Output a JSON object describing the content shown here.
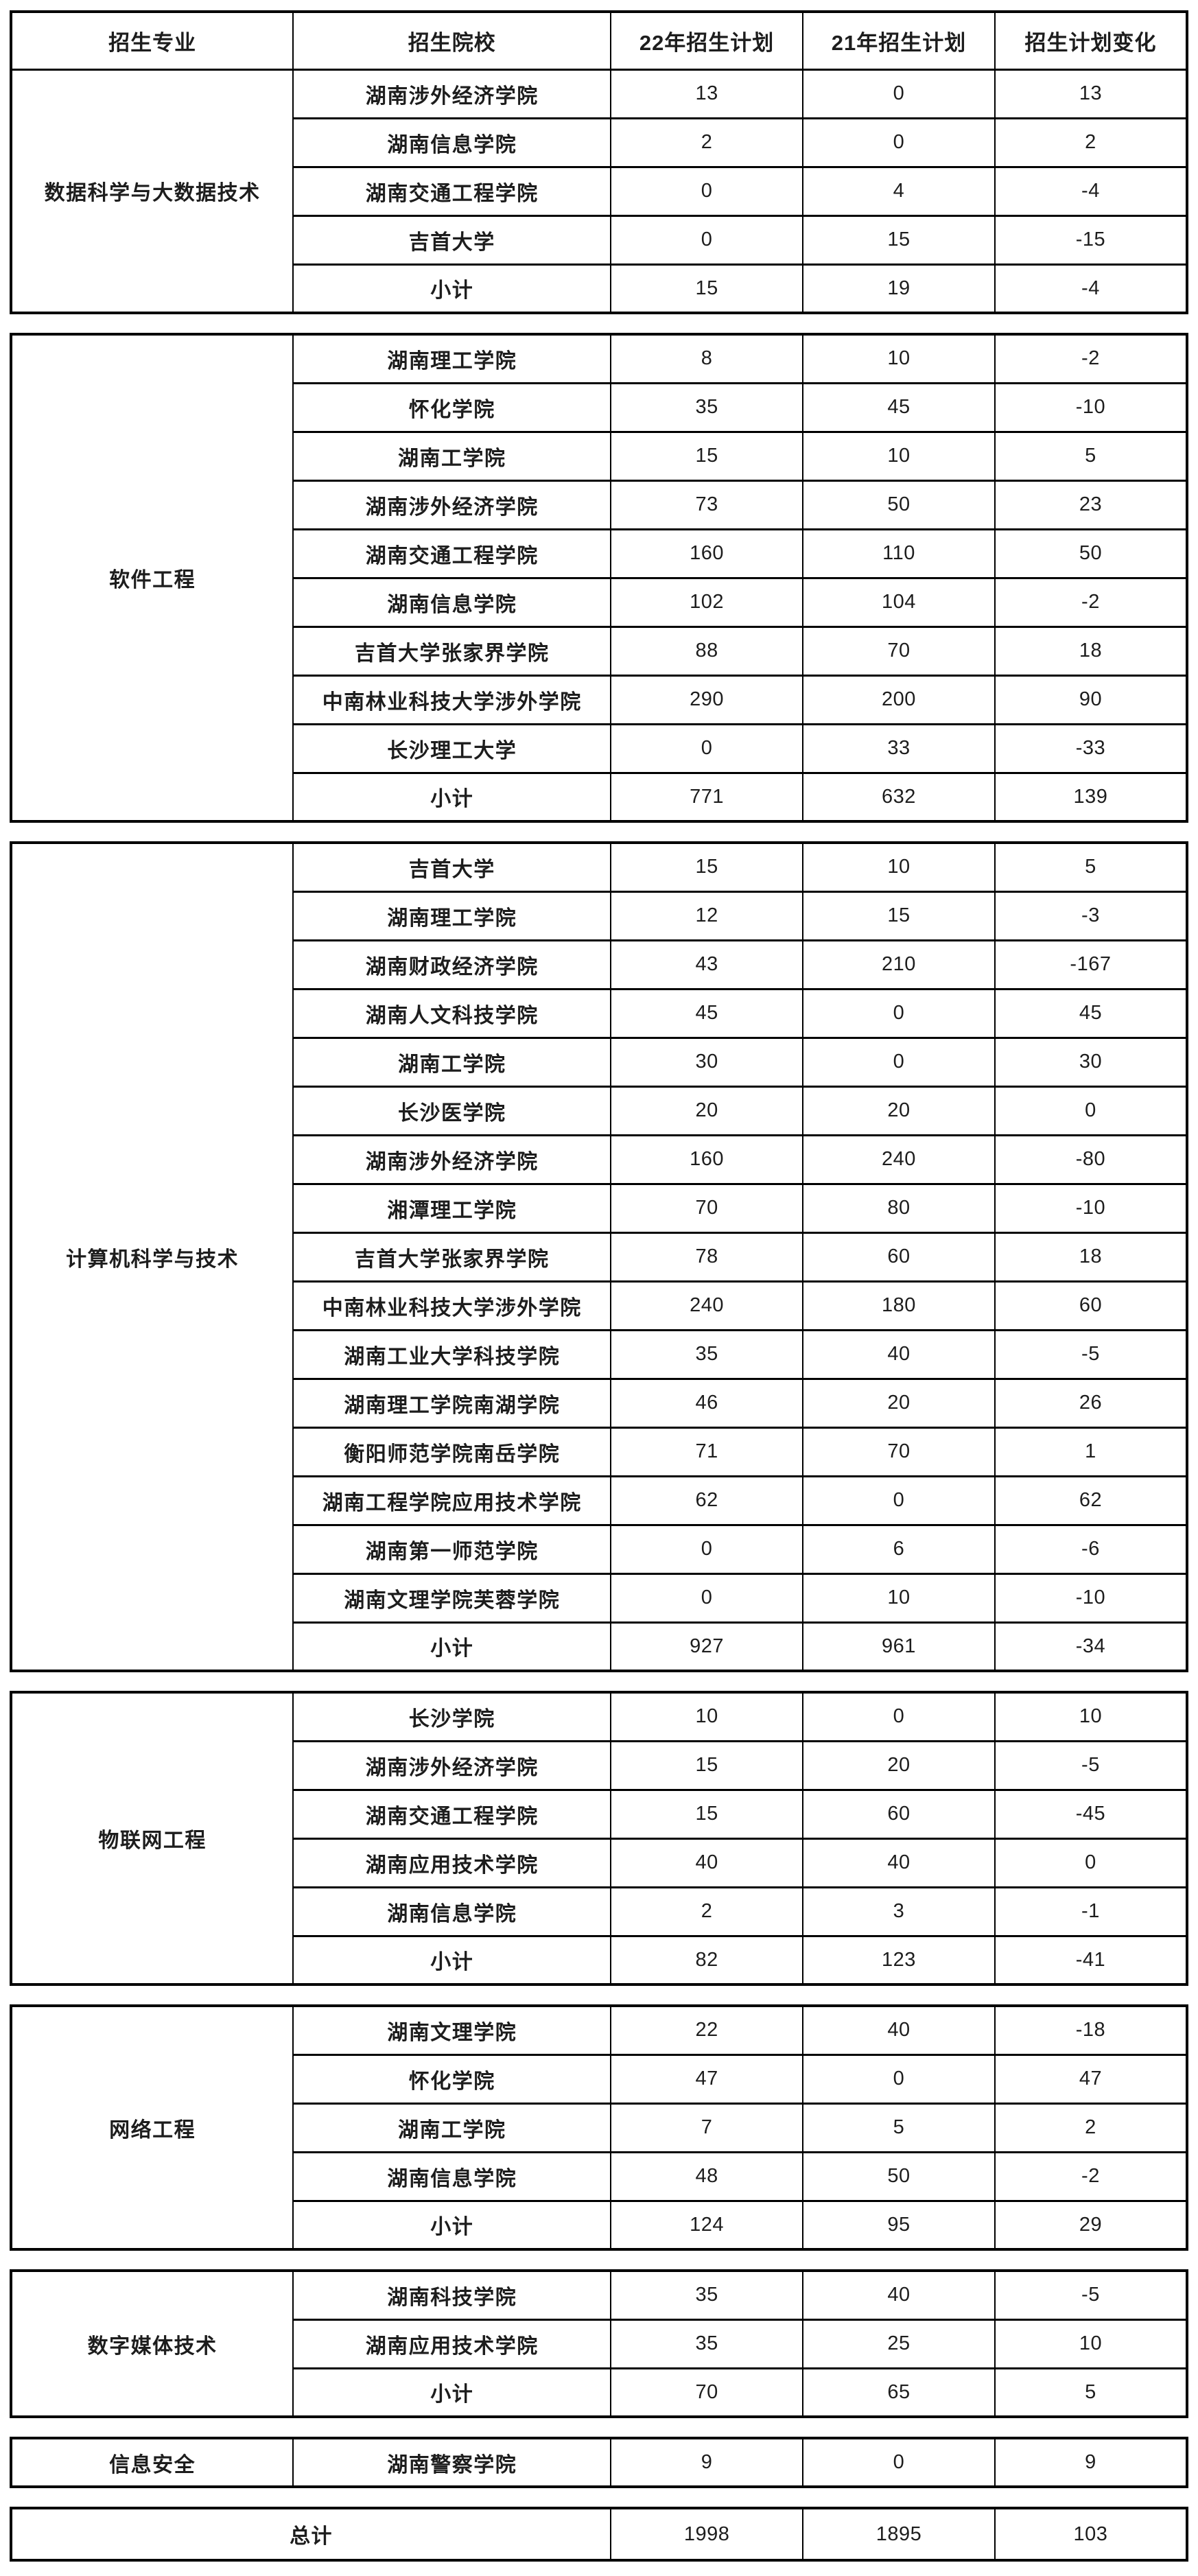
{
  "page": {
    "background_color": "#ffffff",
    "text_color": "#1d1d1d",
    "border_color": "#000000"
  },
  "header": {
    "columns": [
      "招生专业",
      "招生院校",
      "22年招生计划",
      "21年招生计划",
      "招生计划变化"
    ]
  },
  "sections": [
    {
      "major": "数据科学与大数据技术",
      "rows": [
        {
          "college": "湖南涉外经济学院",
          "plan22": "13",
          "plan21": "0",
          "change": "13"
        },
        {
          "college": "湖南信息学院",
          "plan22": "2",
          "plan21": "0",
          "change": "2"
        },
        {
          "college": "湖南交通工程学院",
          "plan22": "0",
          "plan21": "4",
          "change": "-4"
        },
        {
          "college": "吉首大学",
          "plan22": "0",
          "plan21": "15",
          "change": "-15"
        }
      ],
      "subtotal": {
        "label": "小计",
        "plan22": "15",
        "plan21": "19",
        "change": "-4"
      }
    },
    {
      "major": "软件工程",
      "rows": [
        {
          "college": "湖南理工学院",
          "plan22": "8",
          "plan21": "10",
          "change": "-2"
        },
        {
          "college": "怀化学院",
          "plan22": "35",
          "plan21": "45",
          "change": "-10"
        },
        {
          "college": "湖南工学院",
          "plan22": "15",
          "plan21": "10",
          "change": "5"
        },
        {
          "college": "湖南涉外经济学院",
          "plan22": "73",
          "plan21": "50",
          "change": "23"
        },
        {
          "college": "湖南交通工程学院",
          "plan22": "160",
          "plan21": "110",
          "change": "50"
        },
        {
          "college": "湖南信息学院",
          "plan22": "102",
          "plan21": "104",
          "change": "-2"
        },
        {
          "college": "吉首大学张家界学院",
          "plan22": "88",
          "plan21": "70",
          "change": "18"
        },
        {
          "college": "中南林业科技大学涉外学院",
          "plan22": "290",
          "plan21": "200",
          "change": "90"
        },
        {
          "college": "长沙理工大学",
          "plan22": "0",
          "plan21": "33",
          "change": "-33"
        }
      ],
      "subtotal": {
        "label": "小计",
        "plan22": "771",
        "plan21": "632",
        "change": "139"
      }
    },
    {
      "major": "计算机科学与技术",
      "rows": [
        {
          "college": "吉首大学",
          "plan22": "15",
          "plan21": "10",
          "change": "5"
        },
        {
          "college": "湖南理工学院",
          "plan22": "12",
          "plan21": "15",
          "change": "-3"
        },
        {
          "college": "湖南财政经济学院",
          "plan22": "43",
          "plan21": "210",
          "change": "-167"
        },
        {
          "college": "湖南人文科技学院",
          "plan22": "45",
          "plan21": "0",
          "change": "45"
        },
        {
          "college": "湖南工学院",
          "plan22": "30",
          "plan21": "0",
          "change": "30"
        },
        {
          "college": "长沙医学院",
          "plan22": "20",
          "plan21": "20",
          "change": "0"
        },
        {
          "college": "湖南涉外经济学院",
          "plan22": "160",
          "plan21": "240",
          "change": "-80"
        },
        {
          "college": "湘潭理工学院",
          "plan22": "70",
          "plan21": "80",
          "change": "-10"
        },
        {
          "college": "吉首大学张家界学院",
          "plan22": "78",
          "plan21": "60",
          "change": "18"
        },
        {
          "college": "中南林业科技大学涉外学院",
          "plan22": "240",
          "plan21": "180",
          "change": "60"
        },
        {
          "college": "湖南工业大学科技学院",
          "plan22": "35",
          "plan21": "40",
          "change": "-5"
        },
        {
          "college": "湖南理工学院南湖学院",
          "plan22": "46",
          "plan21": "20",
          "change": "26"
        },
        {
          "college": "衡阳师范学院南岳学院",
          "plan22": "71",
          "plan21": "70",
          "change": "1"
        },
        {
          "college": "湖南工程学院应用技术学院",
          "plan22": "62",
          "plan21": "0",
          "change": "62"
        },
        {
          "college": "湖南第一师范学院",
          "plan22": "0",
          "plan21": "6",
          "change": "-6"
        },
        {
          "college": "湖南文理学院芙蓉学院",
          "plan22": "0",
          "plan21": "10",
          "change": "-10"
        }
      ],
      "subtotal": {
        "label": "小计",
        "plan22": "927",
        "plan21": "961",
        "change": "-34"
      }
    },
    {
      "major": "物联网工程",
      "rows": [
        {
          "college": "长沙学院",
          "plan22": "10",
          "plan21": "0",
          "change": "10"
        },
        {
          "college": "湖南涉外经济学院",
          "plan22": "15",
          "plan21": "20",
          "change": "-5"
        },
        {
          "college": "湖南交通工程学院",
          "plan22": "15",
          "plan21": "60",
          "change": "-45"
        },
        {
          "college": "湖南应用技术学院",
          "plan22": "40",
          "plan21": "40",
          "change": "0"
        },
        {
          "college": "湖南信息学院",
          "plan22": "2",
          "plan21": "3",
          "change": "-1"
        }
      ],
      "subtotal": {
        "label": "小计",
        "plan22": "82",
        "plan21": "123",
        "change": "-41"
      }
    },
    {
      "major": "网络工程",
      "rows": [
        {
          "college": "湖南文理学院",
          "plan22": "22",
          "plan21": "40",
          "change": "-18"
        },
        {
          "college": "怀化学院",
          "plan22": "47",
          "plan21": "0",
          "change": "47"
        },
        {
          "college": "湖南工学院",
          "plan22": "7",
          "plan21": "5",
          "change": "2"
        },
        {
          "college": "湖南信息学院",
          "plan22": "48",
          "plan21": "50",
          "change": "-2"
        }
      ],
      "subtotal": {
        "label": "小计",
        "plan22": "124",
        "plan21": "95",
        "change": "29"
      }
    },
    {
      "major": "数字媒体技术",
      "rows": [
        {
          "college": "湖南科技学院",
          "plan22": "35",
          "plan21": "40",
          "change": "-5"
        },
        {
          "college": "湖南应用技术学院",
          "plan22": "35",
          "plan21": "25",
          "change": "10"
        }
      ],
      "subtotal": {
        "label": "小计",
        "plan22": "70",
        "plan21": "65",
        "change": "5"
      }
    },
    {
      "major": "信息安全",
      "rows": [
        {
          "college": "湖南警察学院",
          "plan22": "9",
          "plan21": "0",
          "change": "9"
        }
      ],
      "subtotal": null
    }
  ],
  "grand_total": {
    "label": "总计",
    "plan22": "1998",
    "plan21": "1895",
    "change": "103"
  }
}
